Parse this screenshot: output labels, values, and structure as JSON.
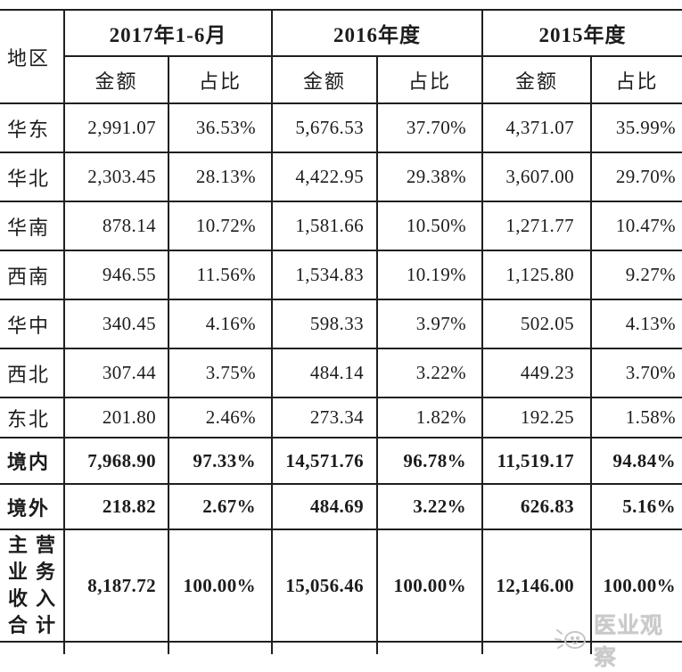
{
  "table": {
    "header": {
      "region_label": "地区",
      "periods": [
        "2017年1-6月",
        "2016年度",
        "2015年度"
      ],
      "amount_label": "金额",
      "share_label": "占比"
    },
    "rows": [
      {
        "region": "华东",
        "bold": false,
        "values": [
          "2,991.07",
          "36.53%",
          "5,676.53",
          "37.70%",
          "4,371.07",
          "35.99%"
        ]
      },
      {
        "region": "华北",
        "bold": false,
        "values": [
          "2,303.45",
          "28.13%",
          "4,422.95",
          "29.38%",
          "3,607.00",
          "29.70%"
        ]
      },
      {
        "region": "华南",
        "bold": false,
        "values": [
          "878.14",
          "10.72%",
          "1,581.66",
          "10.50%",
          "1,271.77",
          "10.47%"
        ]
      },
      {
        "region": "西南",
        "bold": false,
        "values": [
          "946.55",
          "11.56%",
          "1,534.83",
          "10.19%",
          "1,125.80",
          "9.27%"
        ]
      },
      {
        "region": "华中",
        "bold": false,
        "values": [
          "340.45",
          "4.16%",
          "598.33",
          "3.97%",
          "502.05",
          "4.13%"
        ]
      },
      {
        "region": "西北",
        "bold": false,
        "values": [
          "307.44",
          "3.75%",
          "484.14",
          "3.22%",
          "449.23",
          "3.70%"
        ]
      },
      {
        "region": "东北",
        "bold": false,
        "values": [
          "201.80",
          "2.46%",
          "273.34",
          "1.82%",
          "192.25",
          "1.58%"
        ]
      },
      {
        "region": "境内",
        "bold": true,
        "values": [
          "7,968.90",
          "97.33%",
          "14,571.76",
          "96.78%",
          "11,519.17",
          "94.84%"
        ]
      },
      {
        "region": "境外",
        "bold": true,
        "values": [
          "218.82",
          "2.67%",
          "484.69",
          "3.22%",
          "626.83",
          "5.16%"
        ]
      },
      {
        "region": "主营业务收入合计",
        "bold": true,
        "values": [
          "8,187.72",
          "100.00%",
          "15,056.46",
          "100.00%",
          "12,146.00",
          "100.00%"
        ]
      }
    ]
  },
  "watermark": {
    "text": "医业观察"
  },
  "colors": {
    "border": "#1f1f1f",
    "text": "#1c1c1c",
    "watermark": "#cacaca"
  }
}
